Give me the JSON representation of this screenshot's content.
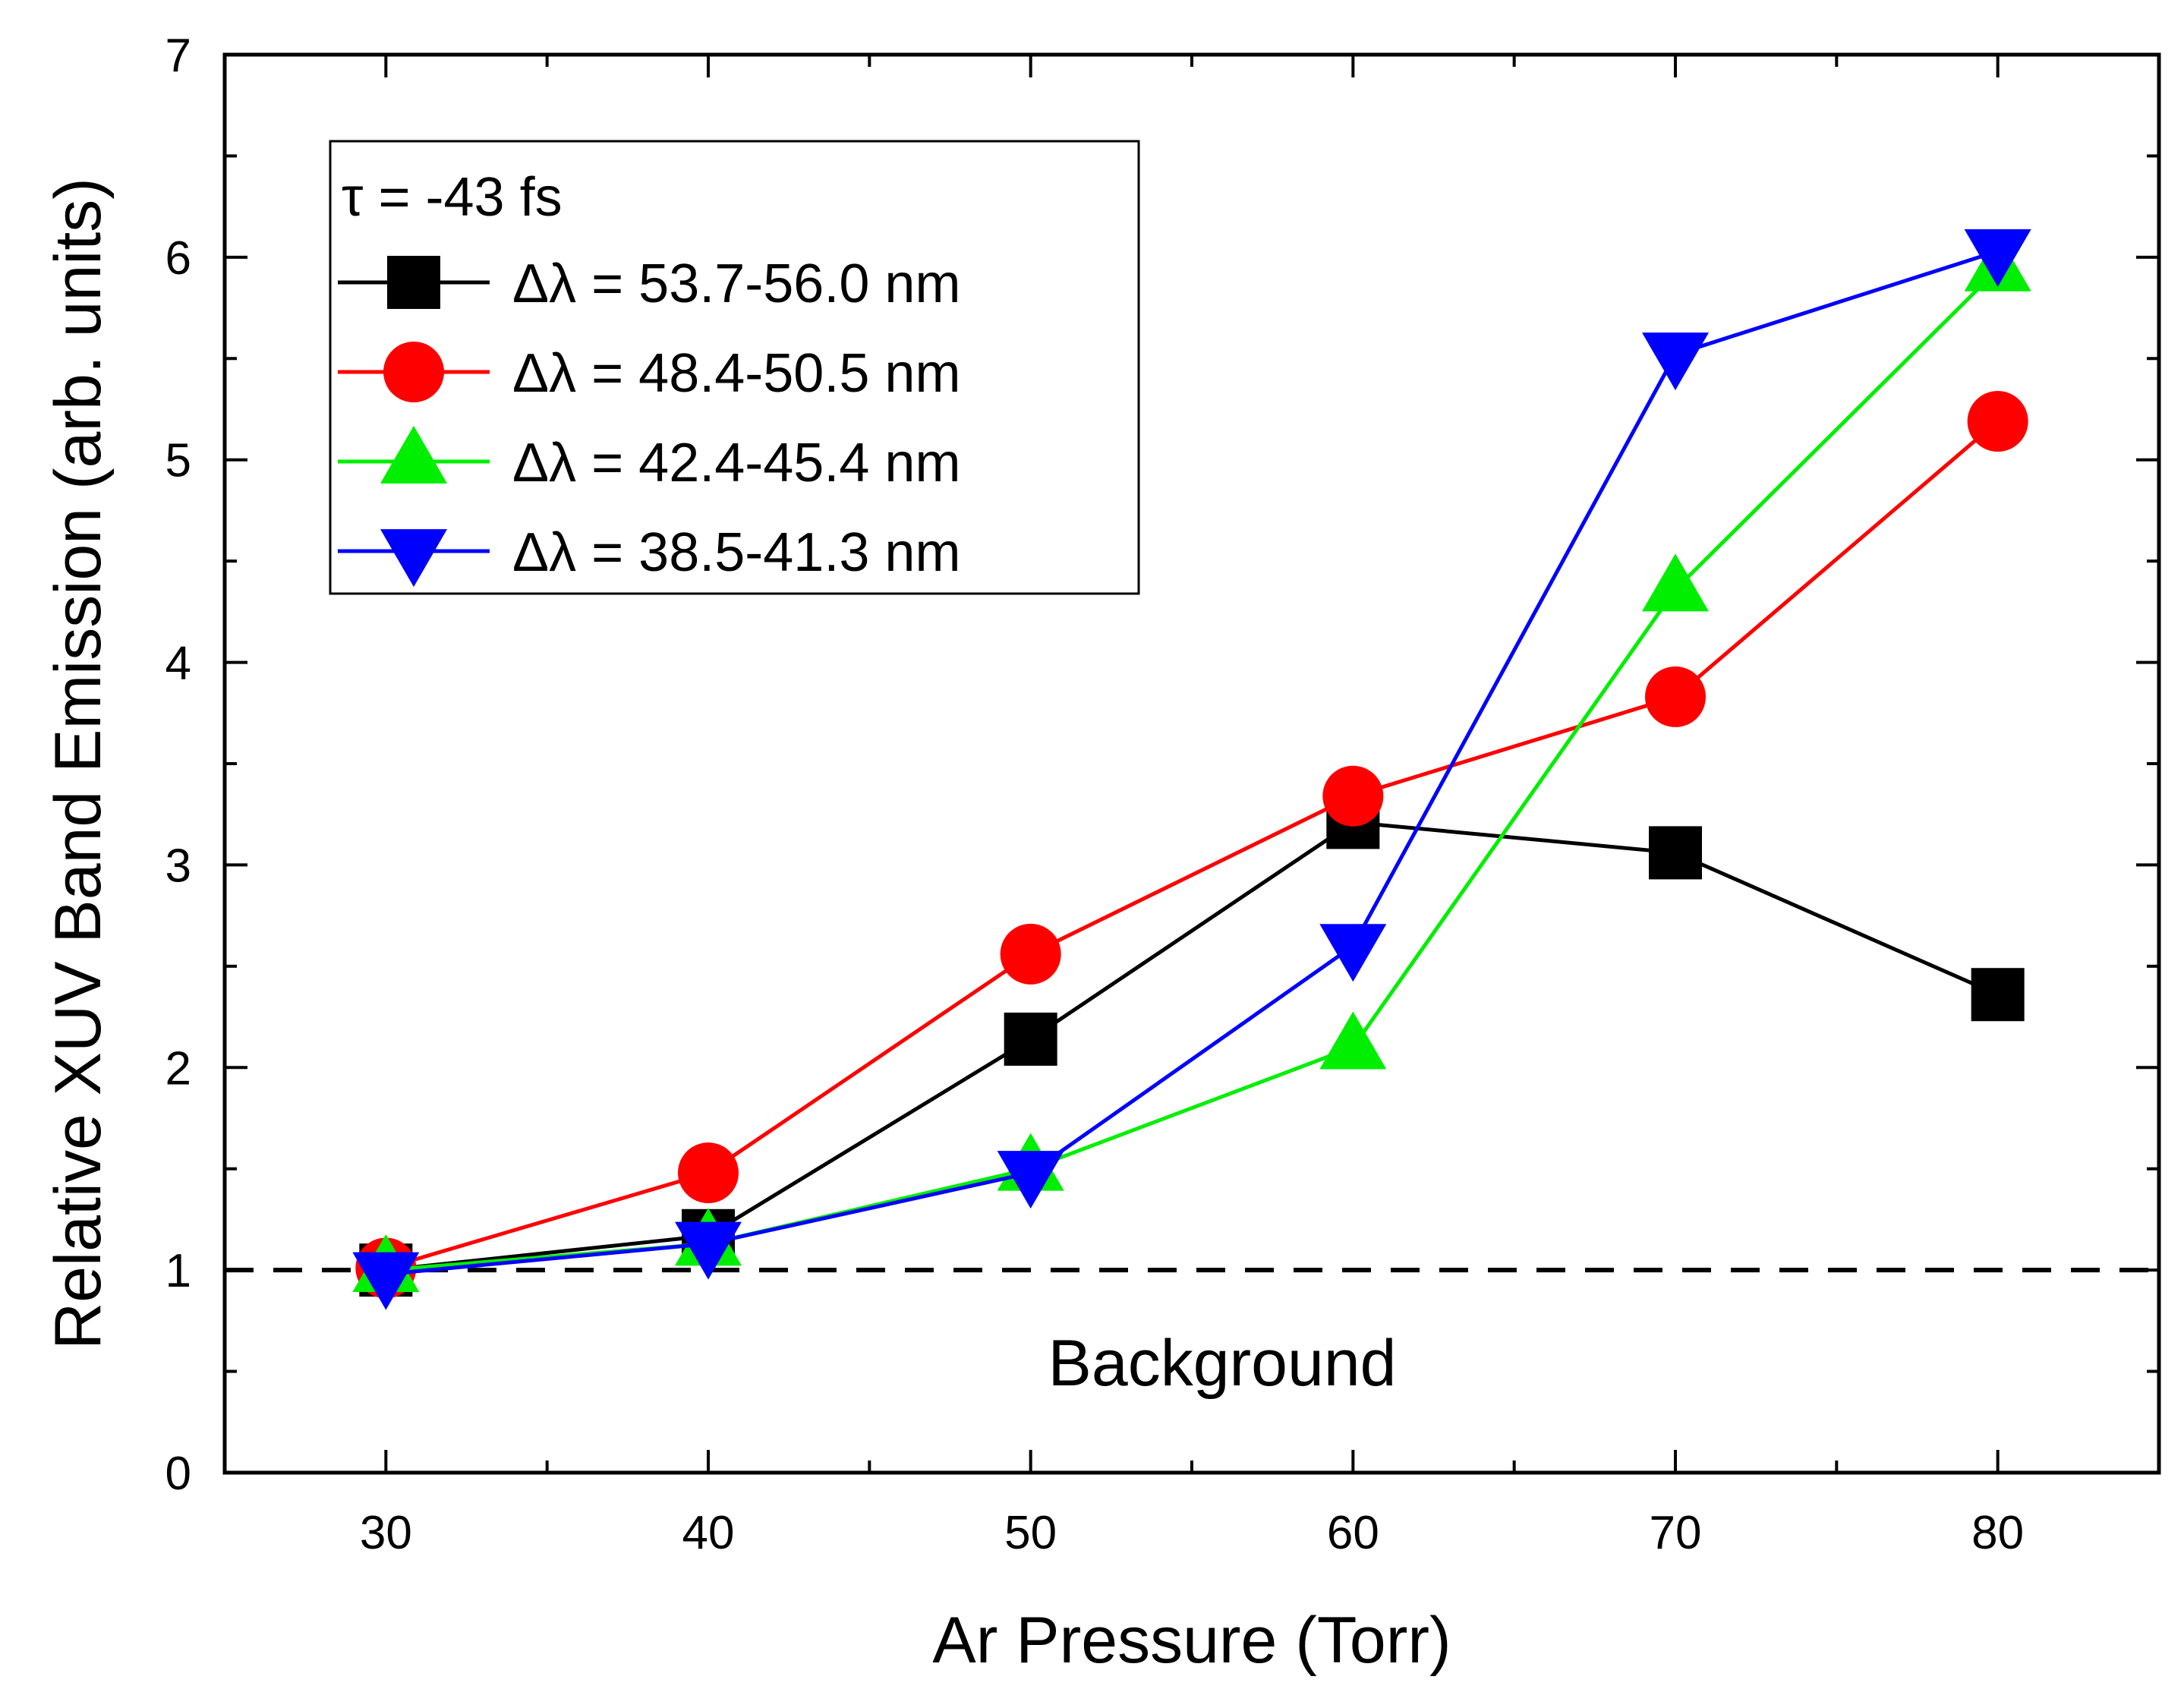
{
  "chart_data": {
    "type": "line",
    "title": "",
    "xlabel": "Ar Pressure (Torr)",
    "ylabel": "Relative XUV Band Emission (arb. units)",
    "xlim": [
      25,
      85
    ],
    "ylim": [
      0,
      7
    ],
    "x_ticks": [
      "30",
      "40",
      "50",
      "60",
      "70",
      "80"
    ],
    "y_ticks": [
      "0",
      "1",
      "2",
      "3",
      "4",
      "5",
      "6",
      "7"
    ],
    "x": [
      30,
      40,
      50,
      60,
      70,
      80
    ],
    "grid": false,
    "legend_title": "τ = -43 fs",
    "legend_position": "top-left",
    "series": [
      {
        "name": "Δλ = 53.7-56.0 nm",
        "color": "#000000",
        "marker": "square",
        "values": [
          1.0,
          1.17,
          2.14,
          3.21,
          3.06,
          2.36
        ]
      },
      {
        "name": "Δλ = 48.4-50.5 nm",
        "color": "#ff0000",
        "marker": "circle",
        "values": [
          1.01,
          1.48,
          2.56,
          3.34,
          3.83,
          5.19
        ]
      },
      {
        "name": "Δλ = 42.4-45.4 nm",
        "color": "#00ee00",
        "marker": "triangle-up",
        "values": [
          1.0,
          1.13,
          1.5,
          2.1,
          4.36,
          5.94
        ]
      },
      {
        "name": "Δλ = 38.5-41.3 nm",
        "color": "#0000ff",
        "marker": "triangle-down",
        "values": [
          0.98,
          1.13,
          1.48,
          2.6,
          5.52,
          6.03
        ]
      }
    ],
    "reference_line": {
      "y": 1,
      "style": "dashed",
      "label": "Background"
    }
  }
}
